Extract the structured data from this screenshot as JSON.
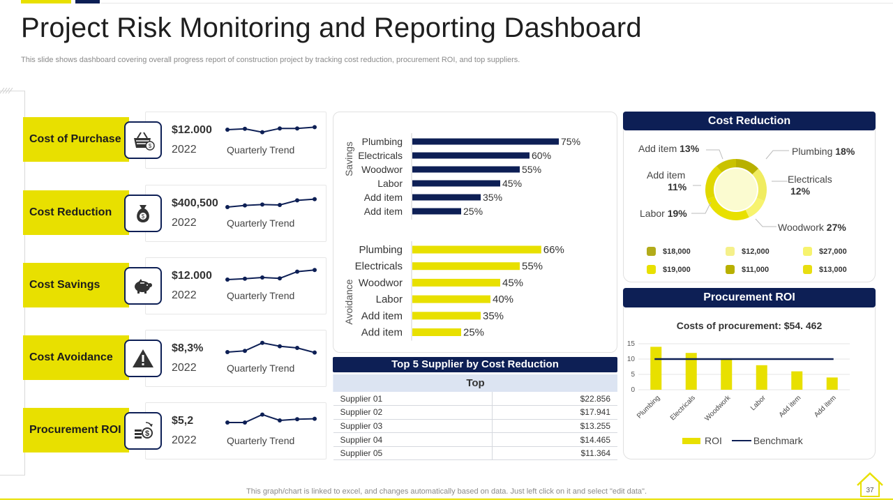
{
  "header": {
    "title": "Project Risk Monitoring and Reporting Dashboard",
    "subtitle": "This slide shows dashboard covering overall progress report of construction project by tracking cost reduction, procurement ROI, and top suppliers."
  },
  "footer": {
    "note": "This graph/chart is linked to excel,  and changes automatically based on data. Just left click on it and select \"edit data\".",
    "page_number": "37"
  },
  "colors": {
    "navy": "#0d1f55",
    "yellow": "#e8e000"
  },
  "kpis": [
    {
      "label": "Cost of Purchase",
      "value": "$12.000",
      "year": "2022",
      "trend_label": "Quarterly Trend",
      "icon": "shopping-basket-icon",
      "trend": [
        3,
        3.2,
        2.4,
        3.3,
        3.3,
        3.6
      ]
    },
    {
      "label": "Cost Reduction",
      "value": "$400,500",
      "year": "2022",
      "trend_label": "Quarterly Trend",
      "icon": "money-bag-icon",
      "trend": [
        2,
        2.4,
        2.6,
        2.5,
        3.6,
        3.9
      ]
    },
    {
      "label": "Cost Savings",
      "value": "$12.000",
      "year": "2022",
      "trend_label": "Quarterly Trend",
      "icon": "piggy-bank-icon",
      "trend": [
        2,
        2.2,
        2.5,
        2.3,
        3.9,
        4.3
      ]
    },
    {
      "label": "Cost Avoidance",
      "value": "$8,3%",
      "year": "2022",
      "trend_label": "Quarterly Trend",
      "icon": "warning-icon",
      "trend": [
        2,
        2.3,
        4.2,
        3.4,
        3.0,
        1.9
      ]
    },
    {
      "label": "Procurement ROI",
      "value": "$5,2",
      "year": "2022",
      "trend_label": "Quarterly Trend",
      "icon": "coins-dollar-icon",
      "trend": [
        2.5,
        2.5,
        4.4,
        3.0,
        3.3,
        3.4
      ]
    }
  ],
  "chart_data": [
    {
      "type": "bar",
      "orientation": "horizontal",
      "group_label": "Savings",
      "categories": [
        "Plumbing",
        "Electricals",
        "Woodwor",
        "Labor",
        "Add item",
        "Add item"
      ],
      "values": [
        75,
        60,
        55,
        45,
        35,
        25
      ],
      "value_labels": [
        "75%",
        "60%",
        "55%",
        "45%",
        "35%",
        "25%"
      ],
      "color": "#0d1f55"
    },
    {
      "type": "bar",
      "orientation": "horizontal",
      "group_label": "Avoidance",
      "categories": [
        "Plumbing",
        "Electricals",
        "Woodwor",
        "Labor",
        "Add item",
        "Add item"
      ],
      "values": [
        66,
        55,
        45,
        40,
        35,
        25
      ],
      "value_labels": [
        "66%",
        "55%",
        "45%",
        "40%",
        "35%",
        "25%"
      ],
      "color": "#e8e000"
    },
    {
      "type": "pie",
      "title": "Cost Reduction",
      "slices": [
        {
          "label": "Add item",
          "pct": "13%",
          "value": 13,
          "color": "#b8b000"
        },
        {
          "label": "Plumbing",
          "pct": "18%",
          "value": 18,
          "color": "#f0ec60"
        },
        {
          "label": "Electricals",
          "pct": "12%",
          "value": 12,
          "color": "#f7f36e"
        },
        {
          "label": "Woodwork",
          "pct": "27%",
          "value": 27,
          "color": "#e8e000"
        },
        {
          "label": "Labor",
          "pct": "19%",
          "value": 19,
          "color": "#e0d800"
        },
        {
          "label": "Add item",
          "pct": "11%",
          "value": 11,
          "color": "#c9c200"
        }
      ],
      "legend": [
        {
          "label": "$18,000",
          "color": "#b2ab1a"
        },
        {
          "label": "$12,000",
          "color": "#f5f08a"
        },
        {
          "label": "$27,000",
          "color": "#f7f36e"
        },
        {
          "label": "$19,000",
          "color": "#e8e000"
        },
        {
          "label": "$11,000",
          "color": "#b8b000"
        },
        {
          "label": "$13,000",
          "color": "#e8de10"
        }
      ]
    },
    {
      "type": "bar",
      "title": "Procurement ROI",
      "subtitle": "Costs of procurement: $54. 462",
      "categories": [
        "Plumbing",
        "Electricals",
        "Woodwork",
        "Labor",
        "Add item",
        "Add item"
      ],
      "series": [
        {
          "name": "ROI",
          "type": "bar",
          "values": [
            14,
            12,
            10,
            8,
            6,
            4
          ],
          "color": "#e8e000"
        },
        {
          "name": "Benchmark",
          "type": "line",
          "values": [
            10,
            10,
            10,
            10,
            10,
            10
          ],
          "color": "#0d1f55"
        }
      ],
      "ylim": [
        0,
        15
      ],
      "yticks": [
        "0",
        "5",
        "10",
        "15"
      ],
      "grid": true,
      "legend_position": "bottom"
    }
  ],
  "suppliers": {
    "title": "Top 5 Supplier by Cost Reduction",
    "column_header": "Top",
    "rows": [
      {
        "name": "Supplier 01",
        "amount": "$22.856"
      },
      {
        "name": "Supplier 02",
        "amount": "$17.941"
      },
      {
        "name": "Supplier 03",
        "amount": "$13.255"
      },
      {
        "name": "Supplier 04",
        "amount": "$14.465"
      },
      {
        "name": "Supplier 05",
        "amount": "$11.364"
      }
    ]
  }
}
